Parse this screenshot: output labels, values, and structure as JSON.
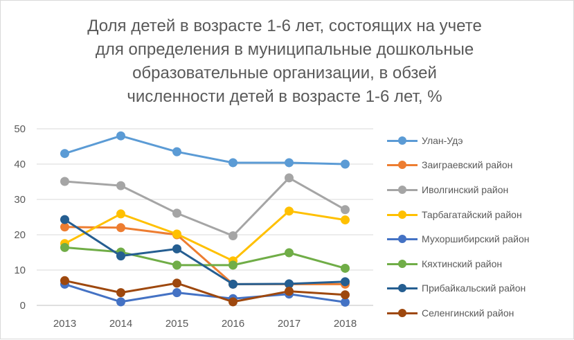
{
  "chart_data": {
    "type": "line",
    "title": [
      "Доля детей в возрасте 1-6 лет, состоящих на учете",
      "для определения в муниципальные дошкольные",
      "образовательные организации, в обзей",
      "численности детей в возрасте 1-6 лет, %"
    ],
    "x": [
      "2013",
      "2014",
      "2015",
      "2016",
      "2017",
      "2018"
    ],
    "ylim": [
      0,
      50
    ],
    "yticks": [
      0,
      10,
      20,
      30,
      40,
      50
    ],
    "grid": true,
    "legend_position": "right",
    "series": [
      {
        "name": "Улан-Удэ",
        "color": "#5B9BD5",
        "values": [
          43.0,
          48.0,
          43.5,
          40.4,
          40.4,
          40.0
        ]
      },
      {
        "name": "Заиграевский район",
        "color": "#ED7D31",
        "values": [
          22.2,
          22.0,
          20.0,
          6.0,
          6.0,
          6.0
        ]
      },
      {
        "name": "Иволгинский район",
        "color": "#A5A5A5",
        "values": [
          35.1,
          33.9,
          26.1,
          19.7,
          36.1,
          27.1
        ]
      },
      {
        "name": "Тарбагатайский район",
        "color": "#FFC000",
        "values": [
          17.5,
          25.9,
          20.2,
          12.6,
          26.7,
          24.2
        ]
      },
      {
        "name": "Мухоршибирский район",
        "color": "#4472C4",
        "values": [
          6.0,
          1.0,
          3.6,
          1.9,
          3.2,
          0.9
        ]
      },
      {
        "name": "Кяхтинский район",
        "color": "#70AD47",
        "values": [
          16.4,
          15.1,
          11.4,
          11.4,
          14.9,
          10.5
        ]
      },
      {
        "name": "Прибайкальский район",
        "color": "#255E91",
        "values": [
          24.3,
          14.0,
          16.0,
          6.0,
          6.1,
          6.7
        ]
      },
      {
        "name": "Селенгинский район",
        "color": "#9E480E",
        "values": [
          7.0,
          3.6,
          6.3,
          1.0,
          4.0,
          3.0
        ]
      }
    ]
  }
}
